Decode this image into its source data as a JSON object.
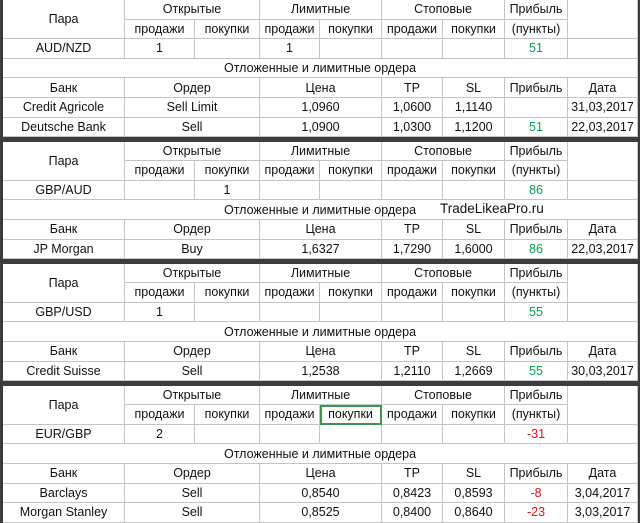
{
  "headers": {
    "pair": "Пара",
    "open": "Открытые",
    "limit": "Лимитные",
    "stop": "Стоповые",
    "profit": "Прибыль",
    "sell": "продажи",
    "buy": "покупки",
    "points": "(пункты)",
    "section": "Отложенные и лимитные ордера",
    "bank": "Банк",
    "order": "Ордер",
    "price": "Цена",
    "tp": "TP",
    "sl": "SL",
    "date": "Дата"
  },
  "watermark": "TradeLikeaPro.ru",
  "blocks": [
    {
      "pair": "AUD/NZD",
      "positions": [
        1,
        null,
        1,
        null,
        null,
        null
      ],
      "profit": 51,
      "orders": [
        {
          "bank": "Credit Agricole",
          "order": "Sell Limit",
          "price": "1,0960",
          "tp": "1,0600",
          "sl": "1,1140",
          "profit": null,
          "date": "31,03,2017"
        },
        {
          "bank": "Deutsche Bank",
          "order": "Sell",
          "price": "1,0900",
          "tp": "1,0300",
          "sl": "1,1200",
          "profit": 51,
          "date": "22,03,2017"
        }
      ]
    },
    {
      "pair": "GBP/AUD",
      "positions": [
        null,
        1,
        null,
        null,
        null,
        null
      ],
      "profit": 86,
      "orders": [
        {
          "bank": "JP Morgan",
          "order": "Buy",
          "price": "1,6327",
          "tp": "1,7290",
          "sl": "1,6000",
          "profit": 86,
          "date": "22,03,2017"
        }
      ]
    },
    {
      "pair": "GBP/USD",
      "positions": [
        1,
        null,
        null,
        null,
        null,
        null
      ],
      "profit": 55,
      "orders": [
        {
          "bank": "Credit Suisse",
          "order": "Sell",
          "price": "1,2538",
          "tp": "1,2110",
          "sl": "1,2669",
          "profit": 55,
          "date": "30,03,2017"
        }
      ]
    },
    {
      "pair": "EUR/GBP",
      "positions": [
        2,
        null,
        null,
        null,
        null,
        null
      ],
      "profit": -31,
      "orders": [
        {
          "bank": "Barclays",
          "order": "Sell",
          "price": "0,8540",
          "tp": "0,8423",
          "sl": "0,8593",
          "profit": -8,
          "date": "3,04,2017"
        },
        {
          "bank": "Morgan Stanley",
          "order": "Sell",
          "price": "0,8525",
          "tp": "0,8400",
          "sl": "0,8640",
          "profit": -23,
          "date": "3,03,2017"
        }
      ]
    }
  ]
}
